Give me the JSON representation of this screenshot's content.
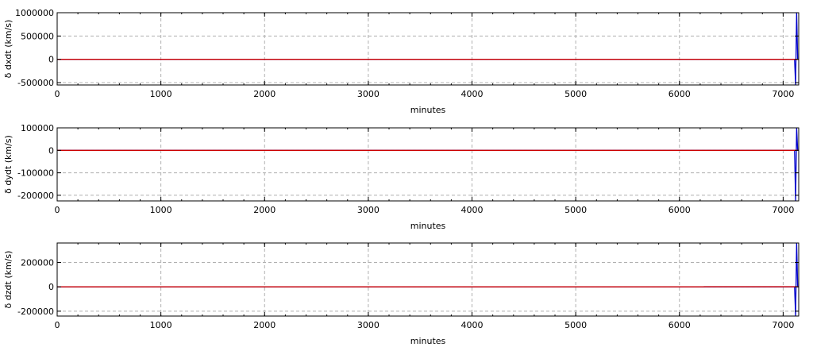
{
  "chart_data": [
    {
      "type": "line",
      "xlabel": "minutes",
      "ylabel": "δ dxdt (km/s)",
      "xlim": [
        0,
        7150
      ],
      "ylim": [
        -550000,
        1000000
      ],
      "xticks": [
        0,
        1000,
        2000,
        3000,
        4000,
        5000,
        6000,
        7000
      ],
      "xtick_labels": [
        "0",
        "1000",
        "2000",
        "3000",
        "4000",
        "5000",
        "6000",
        "7000"
      ],
      "yticks": [
        -500000,
        0,
        500000,
        1000000
      ],
      "ytick_labels": [
        "-500000",
        "0",
        "500000",
        "1000000"
      ],
      "grid": true,
      "series": [
        {
          "color": "#0000cc",
          "x": [
            0,
            7100,
            7110,
            7120,
            7130,
            7140,
            7145
          ],
          "y": [
            0,
            0,
            0,
            -550000,
            1000000,
            0,
            0
          ]
        },
        {
          "color": "#cc0000",
          "x": [
            0,
            7145
          ],
          "y": [
            0,
            0
          ]
        }
      ]
    },
    {
      "type": "line",
      "xlabel": "minutes",
      "ylabel": "δ dydt (km/s)",
      "xlim": [
        0,
        7150
      ],
      "ylim": [
        -225000,
        100000
      ],
      "xticks": [
        0,
        1000,
        2000,
        3000,
        4000,
        5000,
        6000,
        7000
      ],
      "xtick_labels": [
        "0",
        "1000",
        "2000",
        "3000",
        "4000",
        "5000",
        "6000",
        "7000"
      ],
      "yticks": [
        -200000,
        -100000,
        0,
        100000
      ],
      "ytick_labels": [
        "-200000",
        "-100000",
        "0",
        "100000"
      ],
      "grid": true,
      "series": [
        {
          "color": "#0000cc",
          "x": [
            0,
            7100,
            7110,
            7120,
            7130,
            7140,
            7145
          ],
          "y": [
            0,
            0,
            0,
            -225000,
            100000,
            0,
            0
          ]
        },
        {
          "color": "#cc0000",
          "x": [
            0,
            7145
          ],
          "y": [
            0,
            0
          ]
        }
      ]
    },
    {
      "type": "line",
      "xlabel": "minutes",
      "ylabel": "δ dzdt (km/s)",
      "xlim": [
        0,
        7150
      ],
      "ylim": [
        -240000,
        360000
      ],
      "xticks": [
        0,
        1000,
        2000,
        3000,
        4000,
        5000,
        6000,
        7000
      ],
      "xtick_labels": [
        "0",
        "1000",
        "2000",
        "3000",
        "4000",
        "5000",
        "6000",
        "7000"
      ],
      "yticks": [
        -200000,
        0,
        200000
      ],
      "ytick_labels": [
        "-200000",
        "0",
        "200000"
      ],
      "grid": true,
      "series": [
        {
          "color": "#0000cc",
          "x": [
            0,
            7100,
            7110,
            7120,
            7130,
            7140,
            7145
          ],
          "y": [
            0,
            0,
            0,
            -240000,
            360000,
            0,
            0
          ]
        },
        {
          "color": "#cc0000",
          "x": [
            0,
            6230,
            6240,
            7145
          ],
          "y": [
            0,
            0,
            1000,
            1000
          ]
        }
      ]
    }
  ]
}
